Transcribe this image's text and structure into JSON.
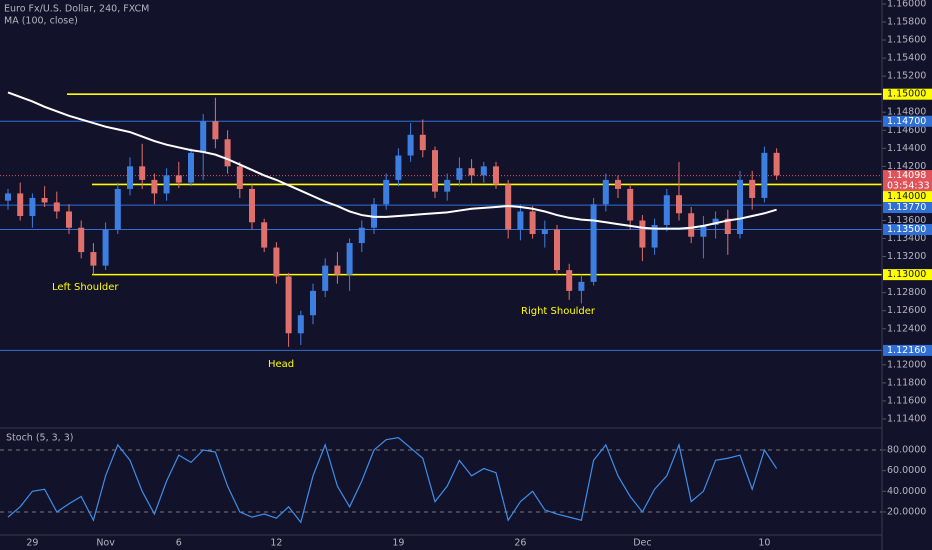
{
  "chart_data": [
    {
      "type": "candlestick",
      "title": "Euro Fx/U.S. Dollar, 240, FXCM",
      "categories": [
        null,
        null,
        "29",
        null,
        null,
        null,
        null,
        null,
        "Nov",
        null,
        null,
        null,
        null,
        null,
        "6",
        null,
        null,
        null,
        null,
        null,
        null,
        null,
        "12",
        null,
        null,
        null,
        null,
        null,
        null,
        null,
        null,
        null,
        "19",
        null,
        null,
        null,
        null,
        null,
        null,
        null,
        null,
        null,
        "26",
        null,
        null,
        null,
        null,
        null,
        null,
        null,
        null,
        null,
        "Dec",
        null,
        null,
        null,
        null,
        null,
        null,
        null,
        null,
        null,
        "10",
        null
      ],
      "open": [
        1.1382,
        1.139,
        1.1365,
        1.1385,
        1.138,
        1.137,
        1.1352,
        1.1325,
        1.131,
        1.135,
        1.1395,
        1.142,
        1.1405,
        1.139,
        1.141,
        1.1402,
        1.1435,
        1.147,
        1.145,
        1.142,
        1.1395,
        1.1358,
        1.133,
        1.1298,
        1.1235,
        1.1255,
        1.1282,
        1.131,
        1.13,
        1.1335,
        1.1352,
        1.1378,
        1.1405,
        1.1432,
        1.1455,
        1.1438,
        1.1392,
        1.1405,
        1.1418,
        1.141,
        1.142,
        1.14,
        1.135,
        1.137,
        1.1345,
        1.135,
        1.1305,
        1.1282,
        1.1292,
        1.1378,
        1.1405,
        1.1395,
        1.136,
        1.133,
        1.1355,
        1.1388,
        1.1368,
        1.1342,
        1.1355,
        1.1362,
        1.1345,
        1.1405,
        1.1385,
        1.1435
      ],
      "high": [
        1.1395,
        1.1402,
        1.139,
        1.1398,
        1.1392,
        1.1378,
        1.136,
        1.1335,
        1.1358,
        1.1402,
        1.143,
        1.1445,
        1.1412,
        1.1418,
        1.1425,
        1.144,
        1.1478,
        1.1496,
        1.146,
        1.1425,
        1.14,
        1.1362,
        1.1336,
        1.1302,
        1.126,
        1.129,
        1.1318,
        1.1325,
        1.134,
        1.136,
        1.1385,
        1.1412,
        1.144,
        1.1468,
        1.1472,
        1.1442,
        1.1412,
        1.143,
        1.1428,
        1.1425,
        1.1425,
        1.1405,
        1.1378,
        1.1376,
        1.136,
        1.1355,
        1.1312,
        1.13,
        1.1385,
        1.1412,
        1.141,
        1.14,
        1.1366,
        1.1362,
        1.1395,
        1.1425,
        1.1375,
        1.1365,
        1.137,
        1.1372,
        1.1415,
        1.1415,
        1.1442,
        1.144
      ],
      "low": [
        1.1372,
        1.136,
        1.1352,
        1.1375,
        1.1362,
        1.1345,
        1.1318,
        1.13,
        1.1305,
        1.1345,
        1.1388,
        1.1395,
        1.1378,
        1.1382,
        1.1396,
        1.1398,
        1.1405,
        1.144,
        1.1412,
        1.1385,
        1.135,
        1.1325,
        1.129,
        1.122,
        1.1222,
        1.1245,
        1.1275,
        1.129,
        1.1282,
        1.1325,
        1.1345,
        1.1372,
        1.1398,
        1.1425,
        1.143,
        1.1385,
        1.1382,
        1.1398,
        1.14,
        1.1402,
        1.1395,
        1.134,
        1.1338,
        1.134,
        1.133,
        1.13,
        1.1272,
        1.1268,
        1.1288,
        1.137,
        1.1385,
        1.135,
        1.1315,
        1.1322,
        1.1348,
        1.136,
        1.1335,
        1.1318,
        1.134,
        1.1322,
        1.134,
        1.1372,
        1.138,
        1.1405
      ],
      "close": [
        1.139,
        1.1365,
        1.1385,
        1.138,
        1.137,
        1.1352,
        1.1325,
        1.131,
        1.135,
        1.1395,
        1.142,
        1.1405,
        1.139,
        1.141,
        1.1402,
        1.1435,
        1.147,
        1.145,
        1.142,
        1.1395,
        1.1358,
        1.133,
        1.1298,
        1.1235,
        1.1255,
        1.1282,
        1.131,
        1.13,
        1.1335,
        1.1352,
        1.1378,
        1.1405,
        1.1432,
        1.1455,
        1.1438,
        1.1392,
        1.1405,
        1.1418,
        1.141,
        1.142,
        1.14,
        1.135,
        1.137,
        1.1345,
        1.135,
        1.1305,
        1.1282,
        1.1292,
        1.1378,
        1.1405,
        1.1395,
        1.136,
        1.133,
        1.1355,
        1.1388,
        1.1368,
        1.1342,
        1.1355,
        1.1362,
        1.1345,
        1.1405,
        1.1385,
        1.1435,
        1.141
      ],
      "up_color": "#3d7fe0",
      "down_color": "#e0706c",
      "series": [
        {
          "name": "MA (100, close)",
          "color": "#ffffff",
          "values": [
            1.1502,
            1.1497,
            1.1492,
            1.1486,
            1.1481,
            1.1476,
            1.1472,
            1.1468,
            1.1464,
            1.1461,
            1.1458,
            1.1453,
            1.1448,
            1.1444,
            1.1441,
            1.1438,
            1.1436,
            1.1433,
            1.1428,
            1.1422,
            1.1416,
            1.141,
            1.1405,
            1.1399,
            1.1393,
            1.1387,
            1.1381,
            1.1376,
            1.137,
            1.1366,
            1.1364,
            1.1364,
            1.1365,
            1.1366,
            1.1367,
            1.1368,
            1.1369,
            1.1371,
            1.1373,
            1.1374,
            1.1375,
            1.1376,
            1.1375,
            1.1373,
            1.137,
            1.1366,
            1.1363,
            1.1361,
            1.136,
            1.1358,
            1.1356,
            1.1354,
            1.1352,
            1.1351,
            1.1351,
            1.1351,
            1.1352,
            1.1354,
            1.1357,
            1.136,
            1.1362,
            1.1365,
            1.1368,
            1.1372
          ]
        }
      ],
      "levels": [
        {
          "value": 1.15,
          "label": "1.15000",
          "color": "#ffff00"
        },
        {
          "value": 1.147,
          "label": "1.14700",
          "color": "#2f6fd6"
        },
        {
          "value": 1.14,
          "label": "1.14000",
          "color": "#ffff00"
        },
        {
          "value": 1.1377,
          "label": "1.13770",
          "color": "#2f6fd6"
        },
        {
          "value": 1.135,
          "label": "1.13500",
          "color": "#2f6fd6"
        },
        {
          "value": 1.13,
          "label": "1.13000",
          "color": "#ffff00"
        },
        {
          "value": 1.1216,
          "label": "1.12160",
          "color": "#2f6fd6"
        }
      ],
      "last_price": {
        "value": 1.14098,
        "label": "1.14098",
        "countdown": "03:54:33",
        "color": "#e0535a"
      },
      "annotations": [
        "Left Shoulder",
        "Head",
        "Right Shoulder"
      ],
      "ylim": [
        1.113,
        1.16044
      ],
      "yticks": [
        {
          "value": 1.16,
          "label": "1.16000"
        },
        {
          "value": 1.158,
          "label": "1.15800"
        },
        {
          "value": 1.156,
          "label": "1.15600"
        },
        {
          "value": 1.154,
          "label": "1.15400"
        },
        {
          "value": 1.152,
          "label": "1.15200"
        },
        {
          "value": 1.148,
          "label": "1.14800"
        },
        {
          "value": 1.146,
          "label": "1.14600"
        },
        {
          "value": 1.144,
          "label": "1.14400"
        },
        {
          "value": 1.142,
          "label": "1.14200"
        },
        {
          "value": 1.136,
          "label": "1.13600"
        },
        {
          "value": 1.134,
          "label": "1.13400"
        },
        {
          "value": 1.132,
          "label": "1.13200"
        },
        {
          "value": 1.128,
          "label": "1.12800"
        },
        {
          "value": 1.126,
          "label": "1.12600"
        },
        {
          "value": 1.124,
          "label": "1.12400"
        },
        {
          "value": 1.12,
          "label": "1.12000"
        },
        {
          "value": 1.118,
          "label": "1.11800"
        },
        {
          "value": 1.116,
          "label": "1.11600"
        },
        {
          "value": 1.114,
          "label": "1.11400"
        }
      ]
    },
    {
      "type": "line",
      "title": "Stoch (5, 3, 3)",
      "color": "#3d8ee8",
      "values": [
        15,
        25,
        40,
        42,
        20,
        28,
        35,
        12,
        55,
        85,
        70,
        40,
        18,
        50,
        75,
        68,
        80,
        78,
        45,
        20,
        15,
        18,
        14,
        25,
        10,
        55,
        85,
        45,
        25,
        50,
        80,
        90,
        92,
        82,
        72,
        30,
        45,
        70,
        55,
        62,
        58,
        12,
        30,
        40,
        22,
        18,
        15,
        12,
        70,
        85,
        55,
        35,
        20,
        42,
        55,
        85,
        30,
        40,
        70,
        72,
        75,
        42,
        80,
        62
      ],
      "bands": [
        80,
        20
      ],
      "ylim": [
        -2.3,
        101.3
      ],
      "yticks": [
        {
          "value": 80,
          "label": "80.0000"
        },
        {
          "value": 60,
          "label": "60.0000"
        },
        {
          "value": 40,
          "label": "40.0000"
        },
        {
          "value": 20,
          "label": "20.0000"
        }
      ]
    }
  ]
}
